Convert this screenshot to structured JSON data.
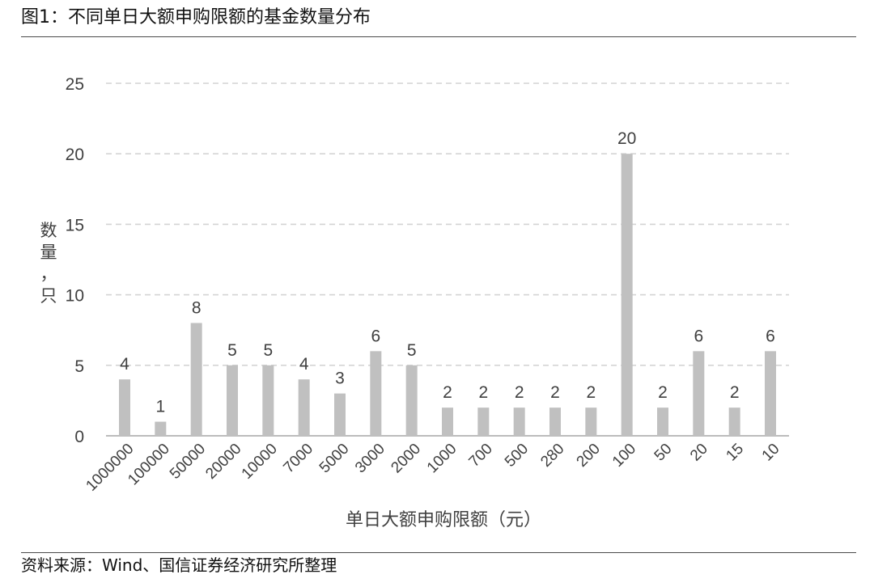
{
  "figure": {
    "title": "图1：不同单日大额申购限额的基金数量分布",
    "source": "资料来源：Wind、国信证券经济研究所整理"
  },
  "colors": {
    "bar": "#c0c0c0",
    "grid": "#d4d4d4",
    "axis": "#a6a6a6",
    "text": "#404040"
  },
  "chart_data": {
    "type": "bar",
    "xlabel": "单日大额申购限额（元）",
    "ylabel": "数量，只",
    "categories": [
      "1000000",
      "100000",
      "50000",
      "20000",
      "10000",
      "7000",
      "5000",
      "3000",
      "2000",
      "1000",
      "700",
      "500",
      "280",
      "200",
      "100",
      "50",
      "20",
      "15",
      "10"
    ],
    "values": [
      4,
      1,
      8,
      5,
      5,
      4,
      3,
      6,
      5,
      2,
      2,
      2,
      2,
      2,
      20,
      2,
      6,
      2,
      6
    ],
    "ylim": [
      0,
      25
    ],
    "yticks": [
      0,
      5,
      10,
      15,
      20,
      25
    ],
    "grid": true,
    "data_labels": true,
    "x_tick_rotation_deg": -45,
    "legend": "none"
  }
}
